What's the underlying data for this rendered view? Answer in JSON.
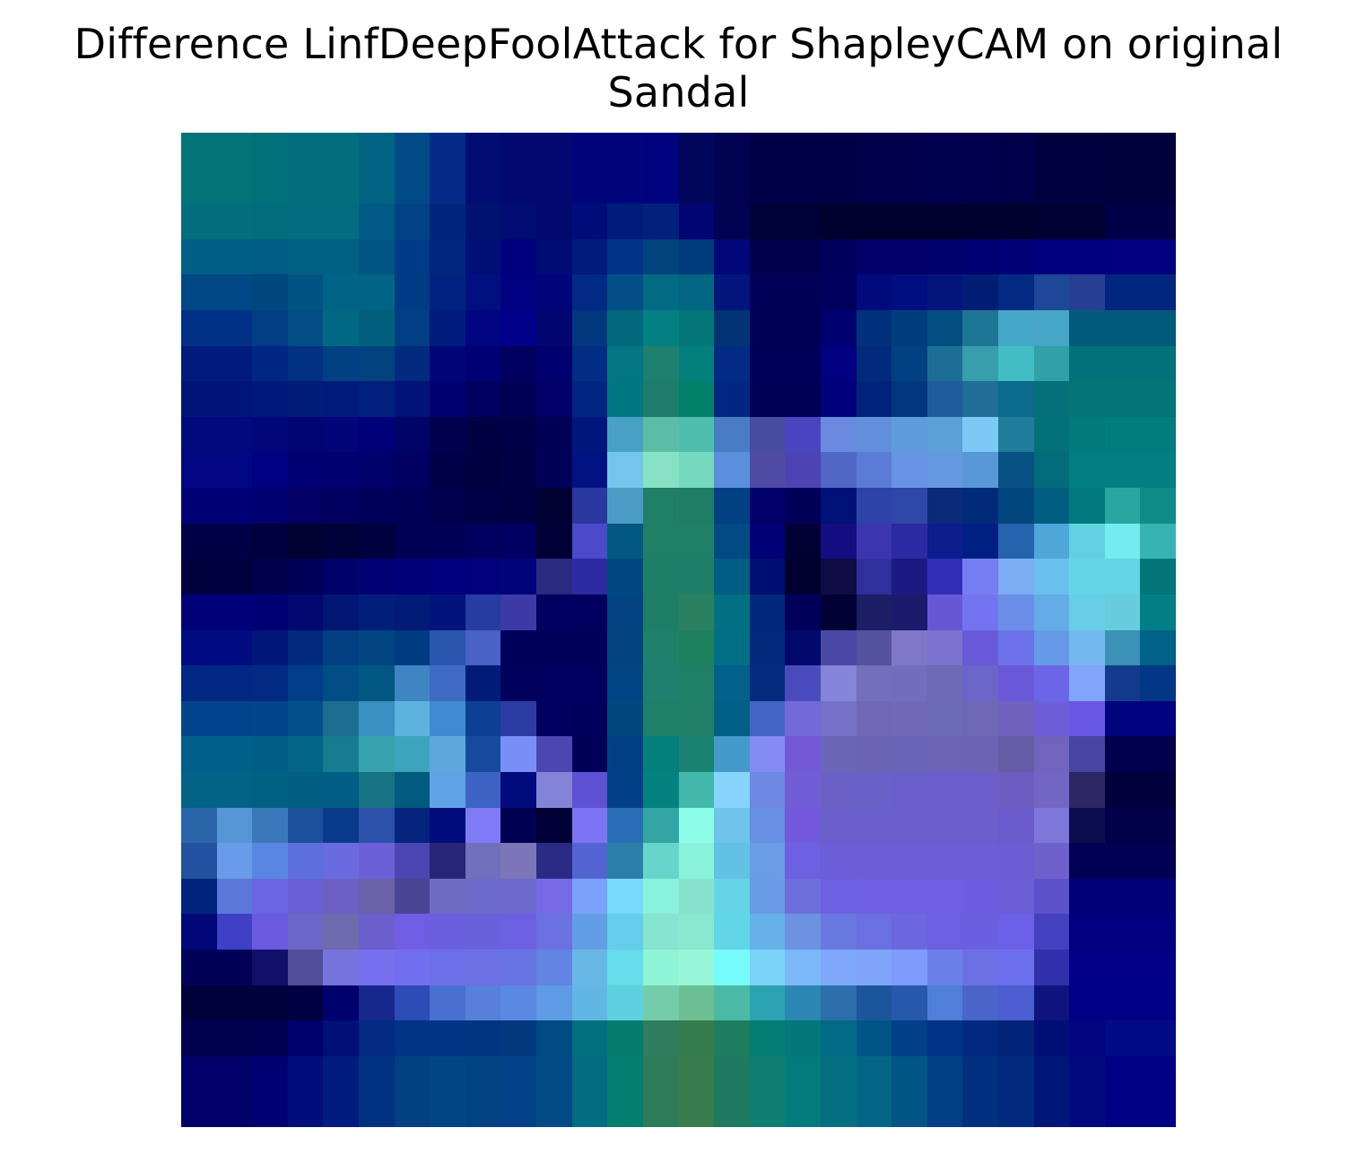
{
  "title": {
    "line1": "Difference LinfDeepFoolAttack for ShapleyCAM on original",
    "line2": "Sandal"
  },
  "chart_data": {
    "type": "heatmap",
    "title": "Difference LinfDeepFoolAttack for ShapleyCAM on original Sandal",
    "xlabel": "",
    "ylabel": "",
    "axes_visible": false,
    "rows": 28,
    "cols": 28,
    "colors": [
      [
        "#027478",
        "#027478",
        "#027078",
        "#026e7d",
        "#026e7d",
        "#026482",
        "#014a88",
        "#012b86",
        "#010d73",
        "#01086f",
        "#01086f",
        "#01057c",
        "#01057c",
        "#00027e",
        "#01055c",
        "#010352",
        "#000047",
        "#000047",
        "#000048",
        "#00004b",
        "#00004c",
        "#000050",
        "#00004e",
        "#00004a",
        "#00003f",
        "#00003f",
        "#00003d",
        "#00003d"
      ],
      [
        "#027478",
        "#027478",
        "#027078",
        "#026e7d",
        "#026e7d",
        "#026482",
        "#014a88",
        "#012b86",
        "#010d73",
        "#01086f",
        "#01086f",
        "#01057c",
        "#01057c",
        "#00027e",
        "#01055c",
        "#010352",
        "#000047",
        "#000047",
        "#000048",
        "#00004b",
        "#00004c",
        "#000050",
        "#00004e",
        "#00004a",
        "#00003f",
        "#00003f",
        "#00003d",
        "#00003d"
      ],
      [
        "#026e7d",
        "#026e7d",
        "#026c7d",
        "#026c81",
        "#026c81",
        "#015a86",
        "#014185",
        "#00257d",
        "#00126f",
        "#010d72",
        "#01086e",
        "#010d7a",
        "#011b7a",
        "#01217c",
        "#010573",
        "#010352",
        "#000038",
        "#000038",
        "#00002f",
        "#00002c",
        "#00002c",
        "#00002c",
        "#00002e",
        "#00002e",
        "#000035",
        "#000035",
        "#000048",
        "#000048"
      ],
      [
        "#015e85",
        "#015e85",
        "#015c84",
        "#016083",
        "#016083",
        "#015585",
        "#003c86",
        "#01267e",
        "#000f76",
        "#00007e",
        "#000c76",
        "#011a7b",
        "#013387",
        "#01447d",
        "#003b7e",
        "#000778",
        "#00004c",
        "#00004c",
        "#00005c",
        "#000068",
        "#000068",
        "#00006c",
        "#000072",
        "#000077",
        "#00007e",
        "#00007e",
        "#000080",
        "#000080"
      ],
      [
        "#014887",
        "#014887",
        "#01487f",
        "#015482",
        "#016486",
        "#016386",
        "#003b86",
        "#01227e",
        "#011081",
        "#000082",
        "#00047a",
        "#012a85",
        "#024f88",
        "#036a84",
        "#026582",
        "#01157c",
        "#000058",
        "#000058",
        "#00005d",
        "#000a7d",
        "#010e81",
        "#01157d",
        "#011d74",
        "#022a82",
        "#1d4797",
        "#263f92",
        "#01267e",
        "#01267e"
      ],
      [
        "#013186",
        "#013186",
        "#013d83",
        "#014e87",
        "#016883",
        "#02607e",
        "#013e85",
        "#001c7d",
        "#000680",
        "#00008b",
        "#000570",
        "#01377d",
        "#02697c",
        "#038081",
        "#03777a",
        "#013375",
        "#000055",
        "#000055",
        "#000071",
        "#01307d",
        "#013d7e",
        "#024e81",
        "#1e7697",
        "#46a8c8",
        "#47a5c7",
        "#025a7b",
        "#025a7b",
        "#025a7b"
      ],
      [
        "#011a7d",
        "#011a7d",
        "#012784",
        "#013281",
        "#014083",
        "#01427f",
        "#002a7d",
        "#00057a",
        "#000076",
        "#00005f",
        "#000070",
        "#012d84",
        "#037784",
        "#1e806e",
        "#037f7c",
        "#012b84",
        "#00005b",
        "#00005b",
        "#000080",
        "#012a7d",
        "#014183",
        "#1d6e97",
        "#389ead",
        "#44bcc3",
        "#31a1a7",
        "#027279",
        "#027279",
        "#027279"
      ],
      [
        "#001379",
        "#001379",
        "#01187f",
        "#011d7a",
        "#011b7d",
        "#011f7c",
        "#01137a",
        "#000071",
        "#00005f",
        "#000055",
        "#000068",
        "#012582",
        "#027784",
        "#1e7d6a",
        "#03806a",
        "#012783",
        "#000055",
        "#000055",
        "#00007b",
        "#01237c",
        "#01377e",
        "#1f5a9e",
        "#1e6e98",
        "#0b6a8d",
        "#03707a",
        "#037576",
        "#037576",
        "#037576"
      ],
      [
        "#000a7f",
        "#000a7f",
        "#000879",
        "#010574",
        "#010579",
        "#000078",
        "#000467",
        "#00004e",
        "#000042",
        "#000047",
        "#000055",
        "#00167c",
        "#46a1c5",
        "#5bbda5",
        "#4fbeae",
        "#4a7bc5",
        "#474c9f",
        "#4b45c2",
        "#6a8ae0",
        "#618fdb",
        "#5e9bde",
        "#5aa2d8",
        "#7cc9f5",
        "#207c9b",
        "#027278",
        "#027a7c",
        "#027d7d",
        "#027d7d"
      ],
      [
        "#000684",
        "#000684",
        "#000083",
        "#010073",
        "#010071",
        "#00006b",
        "#000062",
        "#000048",
        "#000040",
        "#000045",
        "#000059",
        "#001380",
        "#74c5ec",
        "#86e1c5",
        "#75d9c0",
        "#598fdc",
        "#4f4ba4",
        "#4e43b2",
        "#5167c5",
        "#5a7cd7",
        "#6794e4",
        "#649ae2",
        "#5898d6",
        "#075185",
        "#026b7c",
        "#027d80",
        "#027f80",
        "#027f80"
      ],
      [
        "#000076",
        "#000076",
        "#000070",
        "#000065",
        "#00005e",
        "#00005a",
        "#000056",
        "#00004f",
        "#000046",
        "#000042",
        "#000033",
        "#2b389f",
        "#4b9cc5",
        "#1f7f67",
        "#1f7d66",
        "#014183",
        "#000068",
        "#000058",
        "#001178",
        "#2d43a8",
        "#2f47a8",
        "#0a2b7a",
        "#012b78",
        "#01477e",
        "#025e80",
        "#027a7d",
        "#2aa6a0",
        "#0f8b88"
      ],
      [
        "#000046",
        "#000046",
        "#00003f",
        "#000033",
        "#000038",
        "#00003e",
        "#000054",
        "#000058",
        "#00005e",
        "#000062",
        "#000036",
        "#4a4acb",
        "#025881",
        "#1f8066",
        "#1f8066",
        "#014a83",
        "#000077",
        "#000034",
        "#150d82",
        "#3b36b0",
        "#2a2ba2",
        "#0b1e8b",
        "#001f83",
        "#2663ad",
        "#4ea7d8",
        "#61d0e0",
        "#74ebef",
        "#38b3b3"
      ],
      [
        "#00003f",
        "#00003f",
        "#00004a",
        "#000059",
        "#00006b",
        "#000274",
        "#000178",
        "#00007c",
        "#00017b",
        "#00037a",
        "#2a2a7e",
        "#2b2aa2",
        "#014782",
        "#1f7f66",
        "#1f7e67",
        "#015d83",
        "#000f72",
        "#00002f",
        "#0f0b44",
        "#2f309e",
        "#1c1a82",
        "#302fb6",
        "#747ef1",
        "#7cacf4",
        "#6ac0ec",
        "#63d6e6",
        "#63d6e6",
        "#027579"
      ],
      [
        "#000079",
        "#000079",
        "#000074",
        "#000970",
        "#011773",
        "#011e7b",
        "#011b77",
        "#00137c",
        "#273ca2",
        "#3b3aa6",
        "#000063",
        "#00005f",
        "#014481",
        "#1f7f66",
        "#2b8060",
        "#026f82",
        "#012979",
        "#00005a",
        "#000035",
        "#1d1e66",
        "#1c1a6d",
        "#6658d5",
        "#7473ef",
        "#6b8fe8",
        "#63ace8",
        "#68cde6",
        "#67cdde",
        "#027e86"
      ],
      [
        "#010c82",
        "#010c82",
        "#001777",
        "#012a7d",
        "#013e82",
        "#024581",
        "#013b82",
        "#2a56ad",
        "#4a61c8",
        "#00005b",
        "#00005a",
        "#00005a",
        "#014480",
        "#1f806c",
        "#1f8060",
        "#026e85",
        "#012a7a",
        "#010a6c",
        "#4b48a5",
        "#54529c",
        "#8077c9",
        "#7d72cf",
        "#685ad9",
        "#6b72ea",
        "#6699e7",
        "#74b8f1",
        "#3a90b5",
        "#026187"
      ],
      [
        "#012884",
        "#012884",
        "#012a82",
        "#013c86",
        "#014d85",
        "#015781",
        "#3f85c4",
        "#3e6ac3",
        "#001c78",
        "#00005d",
        "#00005f",
        "#000060",
        "#014582",
        "#1f806e",
        "#1f8067",
        "#02608a",
        "#012b7d",
        "#4a4cbd",
        "#8484d8",
        "#736fbd",
        "#726ebd",
        "#6f6ab6",
        "#6b64c9",
        "#6b58d9",
        "#6b66e8",
        "#82a4fa",
        "#123c8b",
        "#023787"
      ],
      [
        "#01448b",
        "#01448b",
        "#01458a",
        "#01508a",
        "#1b6e90",
        "#3990c0",
        "#5cb3de",
        "#3d8bce",
        "#0d3f95",
        "#2b3da5",
        "#00005e",
        "#00005c",
        "#01487f",
        "#1f8067",
        "#1f8066",
        "#016087",
        "#4565c6",
        "#7469d8",
        "#7670c6",
        "#7068b7",
        "#6f69b8",
        "#6d6ab8",
        "#6e68b4",
        "#6f61bd",
        "#6f5ed9",
        "#6757e4",
        "#00037e",
        "#00037e"
      ],
      [
        "#025f89",
        "#025f89",
        "#025e86",
        "#026587",
        "#157d8f",
        "#36a2af",
        "#3ca5bd",
        "#5ca8de",
        "#164a9c",
        "#7a8ef7",
        "#4c46b3",
        "#000058",
        "#013f84",
        "#038079",
        "#1b8170",
        "#4699cb",
        "#848cf4",
        "#725ad6",
        "#6b66b7",
        "#6a63b6",
        "#6a64b8",
        "#6c64b6",
        "#6c63b4",
        "#665ca5",
        "#7163be",
        "#4844a2",
        "#01004f",
        "#01004f"
      ],
      [
        "#026387",
        "#026387",
        "#026083",
        "#025e82",
        "#025e85",
        "#167384",
        "#025a81",
        "#5fa3e6",
        "#3f62c5",
        "#020b7c",
        "#8383d7",
        "#5e51d4",
        "#013f87",
        "#038280",
        "#43b9ad",
        "#86d4fc",
        "#6e88e4",
        "#715ed6",
        "#6a60c5",
        "#6a61c8",
        "#6a5fca",
        "#6a5fcc",
        "#6c5dca",
        "#6d5dc0",
        "#7365c4",
        "#2c2866",
        "#01003c",
        "#01003c"
      ],
      [
        "#2b65a9",
        "#5597d5",
        "#3b78b9",
        "#1e519b",
        "#0a3b8a",
        "#2c51aa",
        "#05247e",
        "#000d7b",
        "#7f7af5",
        "#000052",
        "#000036",
        "#7d74f4",
        "#2b6eb5",
        "#32a5a5",
        "#8cfde8",
        "#70c3ea",
        "#6590e3",
        "#7259db",
        "#6a5fcb",
        "#6a5fcb",
        "#6a5fcb",
        "#6a5fcb",
        "#6d5ecb",
        "#6c5bcc",
        "#7e76d8",
        "#0b0b50",
        "#010048",
        "#010048"
      ],
      [
        "#21519f",
        "#6a9be9",
        "#5a86e3",
        "#5c6fdd",
        "#6a6be0",
        "#6c60d8",
        "#4c45b3",
        "#272577",
        "#7170bc",
        "#7a76b7",
        "#2b2a84",
        "#5364d2",
        "#2c7fa9",
        "#66d6cc",
        "#8af2da",
        "#63c1e5",
        "#6b9de6",
        "#6c5fe0",
        "#6c5dd8",
        "#6b5ed6",
        "#6b5ed6",
        "#6b5ed6",
        "#6b5ed6",
        "#6c5dd4",
        "#6f61cc",
        "#020054",
        "#020054",
        "#020054"
      ],
      [
        "#01227d",
        "#5b78d8",
        "#6a66e2",
        "#6a5fd5",
        "#6d60c2",
        "#6b62a9",
        "#4a4494",
        "#6e6bc3",
        "#6d6bca",
        "#6e6acc",
        "#7869e6",
        "#79a2f8",
        "#78d9fa",
        "#88f2de",
        "#87e2ce",
        "#65d5e6",
        "#699ce6",
        "#6c6fdb",
        "#6c5fe2",
        "#6d5fe0",
        "#6d5fe0",
        "#6d5fe0",
        "#6d5de3",
        "#6c5fd6",
        "#5e52cc",
        "#010079",
        "#010079",
        "#010079"
      ],
      [
        "#000779",
        "#3f40c6",
        "#6b5adf",
        "#6c66c6",
        "#6d6aae",
        "#6b5fce",
        "#715de3",
        "#6c5fde",
        "#6a60dc",
        "#6c60e1",
        "#6c71e2",
        "#629ee5",
        "#64cdea",
        "#86e4d0",
        "#89e8cd",
        "#62d5e9",
        "#64b2e9",
        "#6d92e2",
        "#6a78e1",
        "#6a6fe1",
        "#6c66e0",
        "#6c60e1",
        "#6b5fe0",
        "#6c5fe8",
        "#4441c1",
        "#010080",
        "#010080",
        "#010080"
      ],
      [
        "#000059",
        "#000059",
        "#120f6a",
        "#524d98",
        "#7574dd",
        "#7670ef",
        "#716ef0",
        "#6c6fe7",
        "#6a70e4",
        "#6772e1",
        "#6284e3",
        "#67b7e5",
        "#64dce9",
        "#8ef5d6",
        "#98f6d8",
        "#76fcfb",
        "#7ad3f9",
        "#7bb8f7",
        "#7da7f8",
        "#80a4fa",
        "#7e9cf9",
        "#6c80ea",
        "#6c6fe4",
        "#6b6eec",
        "#2f30aa",
        "#010086",
        "#010086",
        "#010086"
      ],
      [
        "#00003c",
        "#00003c",
        "#00003c",
        "#000045",
        "#00006e",
        "#16288c",
        "#2d4cb5",
        "#4970d1",
        "#5680d9",
        "#5b89e2",
        "#5e9be4",
        "#62b6e4",
        "#5dd1df",
        "#74ccab",
        "#6cc093",
        "#4abaa6",
        "#2ba3b0",
        "#2c87b4",
        "#2c6fab",
        "#1b569c",
        "#2658ac",
        "#507fd8",
        "#4a64c9",
        "#4c5cd1",
        "#0f147f",
        "#000088",
        "#000088",
        "#000088"
      ],
      [
        "#000050",
        "#000050",
        "#000052",
        "#00006c",
        "#001078",
        "#012a80",
        "#013284",
        "#013484",
        "#01357f",
        "#01387e",
        "#014b84",
        "#026f7e",
        "#037c6e",
        "#2f7d5c",
        "#367b4e",
        "#1e7c5f",
        "#037d73",
        "#027879",
        "#026a84",
        "#015487",
        "#013f87",
        "#013286",
        "#01297f",
        "#012479",
        "#000f78",
        "#01067f",
        "#010b85",
        "#010b85"
      ],
      [
        "#000068",
        "#000068",
        "#000072",
        "#000e7b",
        "#011c81",
        "#013181",
        "#014083",
        "#014585",
        "#014285",
        "#014187",
        "#014b85",
        "#026c80",
        "#037e70",
        "#2d7b58",
        "#397c4e",
        "#1f7b60",
        "#0f7e70",
        "#027b7a",
        "#036f80",
        "#026585",
        "#015584",
        "#014084",
        "#01307e",
        "#012a7e",
        "#001677",
        "#00097d",
        "#000084",
        "#000084"
      ],
      [
        "#000068",
        "#000068",
        "#000072",
        "#000e7b",
        "#011c81",
        "#013181",
        "#014083",
        "#014585",
        "#014285",
        "#014187",
        "#014b85",
        "#026c80",
        "#037e70",
        "#2d7b58",
        "#397c4e",
        "#1f7b60",
        "#0f7e70",
        "#027b7a",
        "#036f80",
        "#026585",
        "#015584",
        "#014084",
        "#01307e",
        "#012a7e",
        "#001677",
        "#00097d",
        "#000084",
        "#000084"
      ]
    ]
  }
}
